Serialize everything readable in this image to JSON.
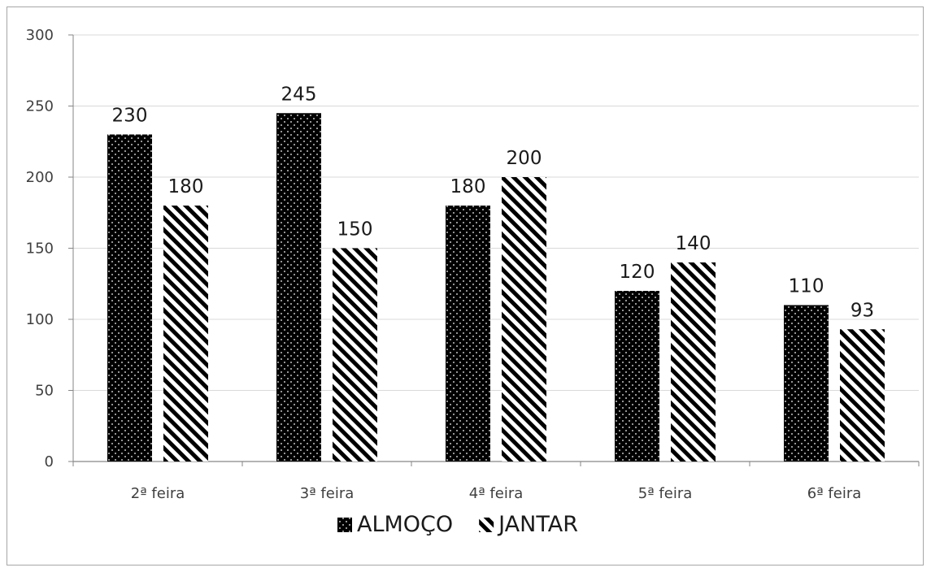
{
  "chart_data": {
    "type": "bar",
    "categories": [
      "2ª feira",
      "3ª feira",
      "4ª feira",
      "5ª feira",
      "6ª feira"
    ],
    "series": [
      {
        "name": "ALMOÇO",
        "values": [
          230,
          245,
          180,
          120,
          110
        ],
        "pattern": "dotted",
        "color": "#000000"
      },
      {
        "name": "JANTAR",
        "values": [
          180,
          150,
          200,
          140,
          93
        ],
        "pattern": "diagonal-stripes",
        "color": "#000000"
      }
    ],
    "yticks": [
      0,
      50,
      100,
      150,
      200,
      250,
      300
    ],
    "ylim": [
      0,
      300
    ],
    "grid": true,
    "legend_position": "bottom",
    "colors": {
      "gridline": "#d9d9d9",
      "axis": "#868686",
      "frame": "#a6a6a6"
    }
  }
}
